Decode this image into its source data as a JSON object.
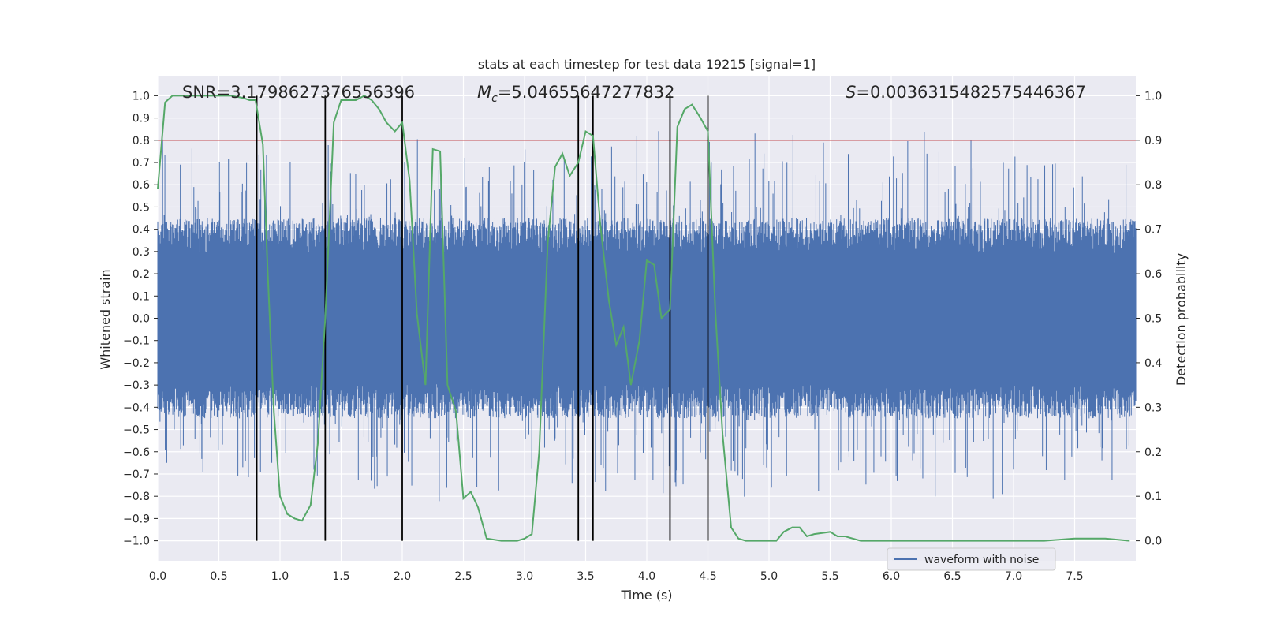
{
  "chart_data": {
    "type": "line",
    "title": "stats at each timestep for test data 19215 [signal=1]",
    "xlabel": "Time (s)",
    "ylabel_left": "Whitened strain",
    "ylabel_right": "Detection probability",
    "xlim": [
      0.0,
      8.0
    ],
    "ylim_left": [
      -1.09,
      1.09
    ],
    "ylim_right": [
      -0.045,
      1.045
    ],
    "x_ticks": [
      "0.0",
      "0.5",
      "1.0",
      "1.5",
      "2.0",
      "2.5",
      "3.0",
      "3.5",
      "4.0",
      "4.5",
      "5.0",
      "5.5",
      "6.0",
      "6.5",
      "7.0",
      "7.5"
    ],
    "x_tick_values": [
      0,
      0.5,
      1,
      1.5,
      2,
      2.5,
      3,
      3.5,
      4,
      4.5,
      5,
      5.5,
      6,
      6.5,
      7,
      7.5
    ],
    "y_left_ticks": [
      "1.0",
      "0.9",
      "0.8",
      "0.7",
      "0.6",
      "0.5",
      "0.4",
      "0.3",
      "0.2",
      "0.1",
      "0.0",
      "−0.1",
      "−0.2",
      "−0.3",
      "−0.4",
      "−0.5",
      "−0.6",
      "−0.7",
      "−0.8",
      "−0.9",
      "−1.0"
    ],
    "y_left_tick_values": [
      1.0,
      0.9,
      0.8,
      0.7,
      0.6,
      0.5,
      0.4,
      0.3,
      0.2,
      0.1,
      0.0,
      -0.1,
      -0.2,
      -0.3,
      -0.4,
      -0.5,
      -0.6,
      -0.7,
      -0.8,
      -0.9,
      -1.0
    ],
    "y_right_ticks": [
      "1.0",
      "0.9",
      "0.8",
      "0.7",
      "0.6",
      "0.5",
      "0.4",
      "0.3",
      "0.2",
      "0.1",
      "0.0"
    ],
    "y_right_tick_values": [
      1.0,
      0.9,
      0.8,
      0.7,
      0.6,
      0.5,
      0.4,
      0.3,
      0.2,
      0.1,
      0.0
    ],
    "annotations": {
      "snr": "SNR=3.1798627376556396",
      "mc_symbol": "M",
      "mc_sub": "c",
      "mc_value": "=5.04655647277832",
      "s_symbol": "S",
      "s_value": "=0.0036315482575446367"
    },
    "threshold": {
      "y_left": 0.8,
      "color": "#c44e52"
    },
    "vertical_lines_x": [
      0.81,
      1.37,
      2.0,
      3.44,
      3.56,
      4.19,
      4.5
    ],
    "legend": {
      "label": "waveform with noise",
      "position": "bottom-right"
    },
    "series": [
      {
        "name": "waveform with noise",
        "color": "#4c72b0",
        "axis": "left",
        "envelope": {
          "t_start": 0.0,
          "t_end": 8.0,
          "typical_upper": 0.45,
          "typical_lower": -0.45,
          "max_upper": 0.99,
          "min_lower": -0.99
        }
      },
      {
        "name": "detection probability",
        "color": "#55a868",
        "axis": "right",
        "x": [
          0.0,
          0.06,
          0.12,
          0.2,
          0.3,
          0.4,
          0.5,
          0.6,
          0.7,
          0.75,
          0.8,
          0.86,
          0.9,
          0.95,
          1.0,
          1.06,
          1.12,
          1.18,
          1.25,
          1.31,
          1.37,
          1.44,
          1.5,
          1.56,
          1.62,
          1.69,
          1.75,
          1.81,
          1.87,
          1.94,
          2.0,
          2.06,
          2.12,
          2.19,
          2.25,
          2.31,
          2.37,
          2.44,
          2.5,
          2.56,
          2.62,
          2.69,
          2.81,
          2.94,
          3.0,
          3.06,
          3.12,
          3.19,
          3.25,
          3.31,
          3.37,
          3.44,
          3.5,
          3.56,
          3.62,
          3.69,
          3.75,
          3.81,
          3.87,
          3.94,
          4.0,
          4.06,
          4.12,
          4.19,
          4.25,
          4.31,
          4.37,
          4.44,
          4.5,
          4.56,
          4.62,
          4.69,
          4.75,
          4.81,
          4.94,
          5.06,
          5.12,
          5.19,
          5.25,
          5.31,
          5.37,
          5.5,
          5.56,
          5.62,
          5.75,
          5.87,
          6.0,
          6.25,
          6.5,
          6.62,
          6.75,
          7.0,
          7.25,
          7.5,
          7.75,
          7.95
        ],
        "y": [
          0.79,
          0.985,
          1.0,
          1.0,
          1.0,
          1.0,
          1.0,
          1.0,
          0.995,
          0.99,
          0.99,
          0.89,
          0.6,
          0.29,
          0.1,
          0.06,
          0.05,
          0.045,
          0.08,
          0.22,
          0.5,
          0.94,
          0.99,
          0.99,
          0.99,
          1.0,
          0.99,
          0.97,
          0.94,
          0.92,
          0.94,
          0.81,
          0.51,
          0.35,
          0.88,
          0.875,
          0.35,
          0.29,
          0.095,
          0.11,
          0.075,
          0.005,
          0.0,
          0.0,
          0.005,
          0.015,
          0.2,
          0.67,
          0.84,
          0.87,
          0.82,
          0.85,
          0.92,
          0.91,
          0.71,
          0.54,
          0.44,
          0.48,
          0.35,
          0.45,
          0.63,
          0.62,
          0.5,
          0.52,
          0.93,
          0.97,
          0.98,
          0.95,
          0.92,
          0.52,
          0.24,
          0.03,
          0.005,
          0.0,
          0.0,
          0.0,
          0.02,
          0.03,
          0.03,
          0.01,
          0.015,
          0.02,
          0.01,
          0.01,
          0.0,
          0.0,
          0.0,
          0.0,
          0.0,
          0.0,
          0.0,
          0.0,
          0.0,
          0.005,
          0.005,
          0.0
        ]
      }
    ]
  }
}
